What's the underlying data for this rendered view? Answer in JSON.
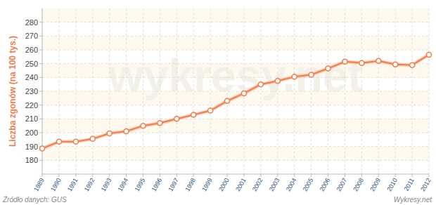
{
  "chart_data": {
    "type": "line",
    "y_label": "Liczba zgonów (na 100 tys.)",
    "categories": [
      "1989",
      "1990",
      "1991",
      "1992",
      "1993",
      "1994",
      "1995",
      "1996",
      "1997",
      "1998",
      "1999",
      "2000",
      "2001",
      "2002",
      "2003",
      "2004",
      "2005",
      "2006",
      "2007",
      "2008",
      "2009",
      "2010",
      "2011",
      "2012"
    ],
    "values": [
      188.5,
      193.5,
      193.5,
      195.5,
      199.5,
      201,
      205,
      207,
      210,
      213,
      216,
      223,
      228.5,
      235,
      237.5,
      240.5,
      242,
      246.5,
      251.5,
      250.5,
      252,
      249.5,
      249,
      256.5
    ],
    "color": "#f07c4a",
    "marker": "circle",
    "ylim": [
      170,
      290
    ],
    "yticks": [
      180,
      190,
      200,
      210,
      220,
      230,
      240,
      250,
      260,
      270,
      280
    ],
    "grid": true,
    "annotations": [
      "Źródło danych: GUS",
      "Wykresy.net",
      "wykresy.net"
    ]
  }
}
